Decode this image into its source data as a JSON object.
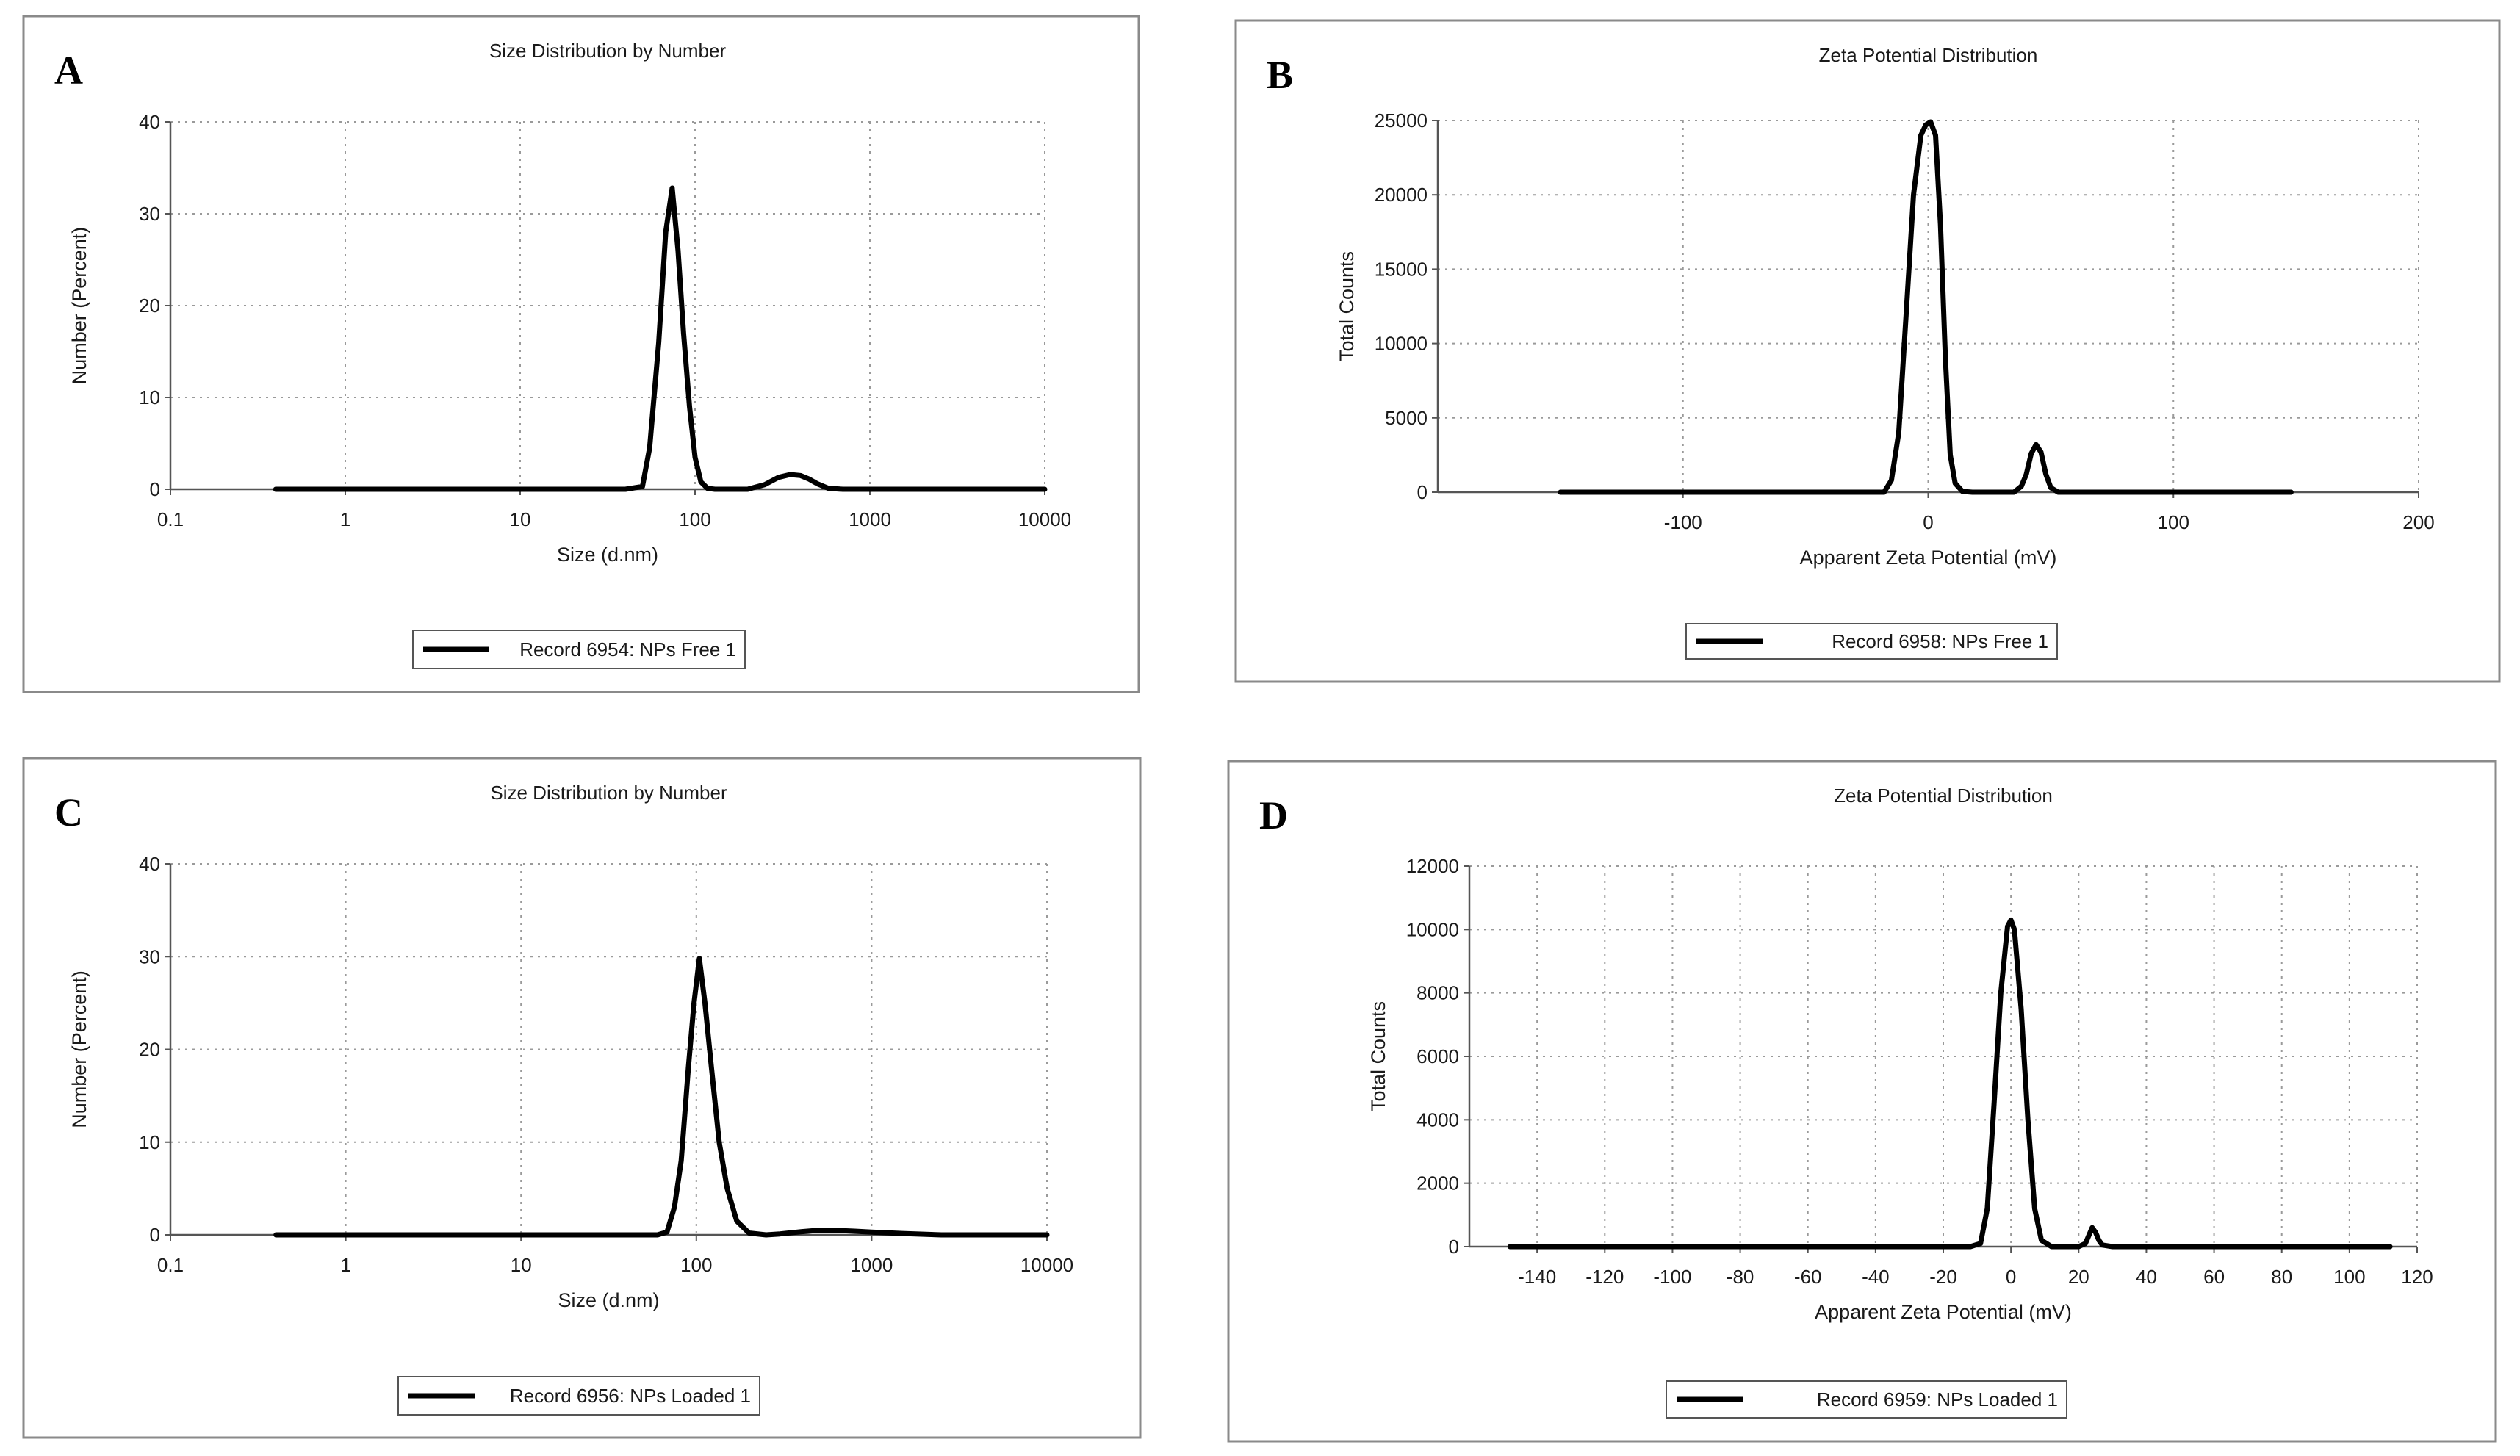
{
  "colors": {
    "frame": "#8a8a8a",
    "grid": "#9a9a9a",
    "axis": "#555555",
    "line": "#000000",
    "text": "#1a1a1a"
  },
  "chart_data": [
    {
      "panel_letter": "A",
      "type": "line",
      "title": "Size Distribution by Number",
      "xlabel": "Size (d.nm)",
      "ylabel": "Number (Percent)",
      "xscale": "log",
      "xlim": [
        0.1,
        10000
      ],
      "ylim": [
        0,
        40
      ],
      "x_ticks": [
        0.1,
        1,
        10,
        100,
        1000,
        10000
      ],
      "x_tick_labels": [
        "0.1",
        "1",
        "10",
        "100",
        "1000",
        "10000"
      ],
      "y_ticks": [
        0,
        10,
        20,
        30,
        40
      ],
      "y_tick_labels": [
        "0",
        "10",
        "20",
        "30",
        "40"
      ],
      "legend": "Record 6954: NPs Free 1",
      "series": [
        {
          "name": "Record 6954: NPs Free 1",
          "x": [
            0.4,
            40,
            50,
            55,
            62,
            68,
            74,
            80,
            86,
            93,
            100,
            108,
            118,
            130,
            150,
            200,
            250,
            300,
            350,
            400,
            450,
            500,
            580,
            700,
            1000,
            10000
          ],
          "y": [
            0,
            0,
            0.3,
            4.5,
            16,
            28,
            32.8,
            26,
            17,
            9,
            3.5,
            0.8,
            0.1,
            0,
            0,
            0,
            0.5,
            1.3,
            1.6,
            1.5,
            1.1,
            0.6,
            0.1,
            0,
            0,
            0
          ]
        }
      ]
    },
    {
      "panel_letter": "B",
      "type": "line",
      "title": "Zeta Potential Distribution",
      "xlabel": "Apparent Zeta Potential (mV)",
      "ylabel": "Total Counts",
      "xscale": "linear",
      "xlim": [
        -200,
        200
      ],
      "ylim": [
        0,
        25000
      ],
      "x_ticks": [
        -100,
        0,
        100,
        200
      ],
      "x_tick_labels": [
        "-100",
        "0",
        "100",
        "200"
      ],
      "y_ticks": [
        0,
        5000,
        10000,
        15000,
        20000,
        25000
      ],
      "y_tick_labels": [
        "0",
        "5000",
        "10000",
        "15000",
        "20000",
        "25000"
      ],
      "legend": "Record 6958: NPs Free 1",
      "series": [
        {
          "name": "Record 6958: NPs Free 1",
          "x": [
            -150,
            -25,
            -18,
            -15,
            -12,
            -9,
            -6,
            -3,
            -1,
            1,
            3,
            5,
            7,
            9,
            11,
            14,
            18,
            35,
            38,
            40,
            42,
            44,
            46,
            48,
            50,
            53,
            56,
            60,
            148
          ],
          "y": [
            0,
            0,
            0,
            800,
            4000,
            12000,
            20000,
            24000,
            24700,
            24900,
            24000,
            18000,
            9000,
            2500,
            600,
            50,
            0,
            0,
            400,
            1200,
            2600,
            3200,
            2700,
            1200,
            300,
            0,
            0,
            0,
            0
          ]
        }
      ]
    },
    {
      "panel_letter": "C",
      "type": "line",
      "title": "Size Distribution by Number",
      "xlabel": "Size (d.nm)",
      "ylabel": "Number (Percent)",
      "xscale": "log",
      "xlim": [
        0.1,
        10000
      ],
      "ylim": [
        0,
        40
      ],
      "x_ticks": [
        0.1,
        1,
        10,
        100,
        1000,
        10000
      ],
      "x_tick_labels": [
        "0.1",
        "1",
        "10",
        "100",
        "1000",
        "10000"
      ],
      "y_ticks": [
        0,
        10,
        20,
        30,
        40
      ],
      "y_tick_labels": [
        "0",
        "10",
        "20",
        "30",
        "40"
      ],
      "legend": "Record 6956: NPs Loaded 1",
      "series": [
        {
          "name": "Record 6956: NPs Loaded 1",
          "x": [
            0.4,
            60,
            68,
            75,
            82,
            90,
            97,
            104,
            112,
            122,
            135,
            150,
            170,
            200,
            250,
            300,
            400,
            500,
            600,
            800,
            1000,
            1500,
            2500,
            10000
          ],
          "y": [
            0,
            0,
            0.3,
            3,
            8,
            18,
            25,
            29.8,
            25,
            18,
            10,
            5,
            1.5,
            0.2,
            0,
            0.1,
            0.35,
            0.5,
            0.5,
            0.4,
            0.3,
            0.15,
            0,
            0
          ]
        }
      ]
    },
    {
      "panel_letter": "D",
      "type": "line",
      "title": "Zeta Potential Distribution",
      "xlabel": "Apparent Zeta Potential (mV)",
      "ylabel": "Total Counts",
      "xscale": "linear",
      "xlim": [
        -160,
        120
      ],
      "ylim": [
        0,
        12000
      ],
      "x_ticks": [
        -140,
        -120,
        -100,
        -80,
        -60,
        -40,
        -20,
        0,
        20,
        40,
        60,
        80,
        100,
        120
      ],
      "x_tick_labels": [
        "-140",
        "-120",
        "-100",
        "-80",
        "-60",
        "-40",
        "-20",
        "0",
        "20",
        "40",
        "60",
        "80",
        "100",
        "120"
      ],
      "y_ticks": [
        0,
        2000,
        4000,
        6000,
        8000,
        10000,
        12000
      ],
      "y_tick_labels": [
        "0",
        "2000",
        "4000",
        "6000",
        "8000",
        "10000",
        "12000"
      ],
      "legend": "Record 6959: NPs Loaded 1",
      "series": [
        {
          "name": "Record 6959: NPs Loaded 1",
          "x": [
            -148,
            -12,
            -9,
            -7,
            -5,
            -3,
            -1,
            0,
            1,
            3,
            5,
            7,
            9,
            12,
            20,
            22,
            23,
            24,
            25,
            26,
            27,
            30,
            112
          ],
          "y": [
            0,
            0,
            100,
            1200,
            4500,
            8000,
            10100,
            10300,
            10000,
            7500,
            4000,
            1200,
            200,
            0,
            0,
            100,
            350,
            600,
            450,
            200,
            50,
            0,
            0
          ]
        }
      ]
    }
  ]
}
